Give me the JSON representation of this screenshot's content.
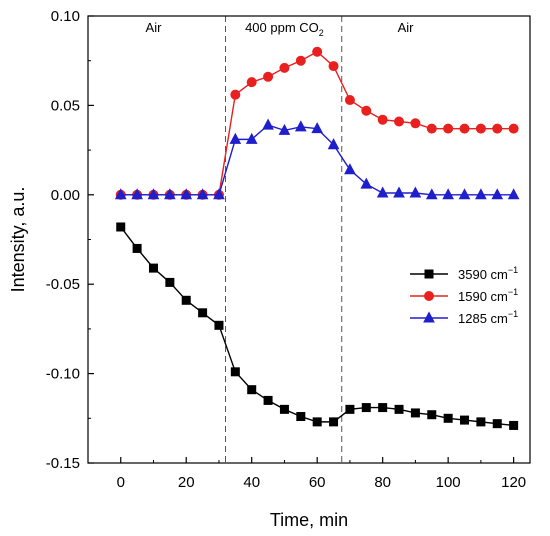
{
  "chart_data": {
    "type": "line",
    "xlabel": "Time, min",
    "ylabel": "Intensity, a.u.",
    "xlim": [
      -10,
      125
    ],
    "ylim": [
      -0.15,
      0.1
    ],
    "x_ticks": [
      0,
      20,
      40,
      60,
      80,
      100,
      120
    ],
    "x_tick_labels": [
      "0",
      "20",
      "40",
      "60",
      "80",
      "100",
      "120"
    ],
    "y_ticks": [
      -0.15,
      -0.1,
      -0.05,
      0.0,
      0.05,
      0.1
    ],
    "y_tick_labels": [
      "-0.15",
      "-0.10",
      "-0.05",
      "0.00",
      "0.05",
      "0.10"
    ],
    "grid": false,
    "legend_position": "center-right",
    "regions": {
      "boundaries": [
        32,
        67.5
      ],
      "labels": [
        {
          "text": "Air",
          "x": 10
        },
        {
          "text": "400 ppm CO",
          "sub": "2",
          "x": 50
        },
        {
          "text": "Air",
          "x": 87
        }
      ]
    },
    "series": [
      {
        "name": "3590 cm",
        "name_sup": "−1",
        "color": "#000000",
        "marker": "square",
        "x": [
          0,
          5,
          10,
          15,
          20,
          25,
          30,
          35,
          40,
          45,
          50,
          55,
          60,
          65,
          70,
          75,
          80,
          85,
          90,
          95,
          100,
          105,
          110,
          115,
          120
        ],
        "y": [
          -0.018,
          -0.03,
          -0.041,
          -0.049,
          -0.059,
          -0.066,
          -0.073,
          -0.099,
          -0.109,
          -0.115,
          -0.12,
          -0.124,
          -0.127,
          -0.127,
          -0.12,
          -0.119,
          -0.119,
          -0.12,
          -0.122,
          -0.123,
          -0.125,
          -0.126,
          -0.127,
          -0.128,
          -0.129
        ]
      },
      {
        "name": "1590 cm",
        "name_sup": "−1",
        "color": "#e8201f",
        "marker": "circle",
        "x": [
          0,
          5,
          10,
          15,
          20,
          25,
          30,
          35,
          40,
          45,
          50,
          55,
          60,
          65,
          70,
          75,
          80,
          85,
          90,
          95,
          100,
          105,
          110,
          115,
          120
        ],
        "y": [
          0.0,
          0.0,
          0.0,
          0.0,
          0.0,
          0.0,
          0.0,
          0.056,
          0.063,
          0.066,
          0.071,
          0.075,
          0.08,
          0.072,
          0.053,
          0.047,
          0.042,
          0.041,
          0.04,
          0.037,
          0.037,
          0.037,
          0.037,
          0.037,
          0.037
        ]
      },
      {
        "name": "1285 cm",
        "name_sup": "−1",
        "color": "#1f1fcc",
        "marker": "triangle",
        "x": [
          0,
          5,
          10,
          15,
          20,
          25,
          30,
          35,
          40,
          45,
          50,
          55,
          60,
          65,
          70,
          75,
          80,
          85,
          90,
          95,
          100,
          105,
          110,
          115,
          120
        ],
        "y": [
          0.0,
          0.0,
          0.0,
          0.0,
          0.0,
          0.0,
          0.0,
          0.031,
          0.031,
          0.039,
          0.036,
          0.038,
          0.037,
          0.028,
          0.014,
          0.006,
          0.001,
          0.001,
          0.001,
          0.0,
          0.0,
          0.0,
          0.0,
          0.0,
          0.0
        ]
      }
    ]
  }
}
